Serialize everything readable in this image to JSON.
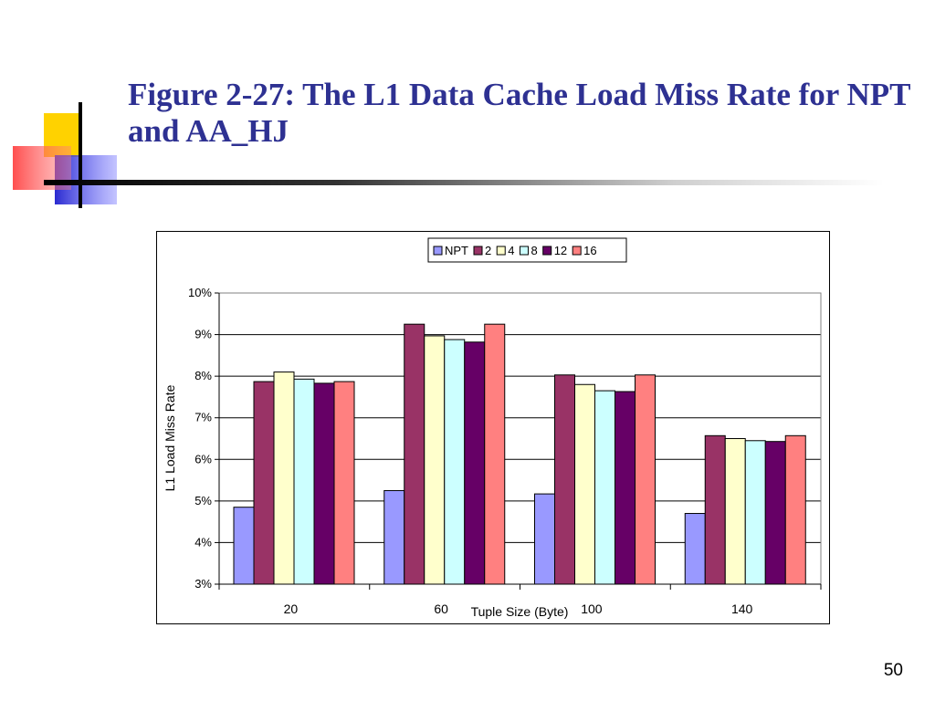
{
  "slide": {
    "title": "Figure 2-27: The L1 Data Cache Load Miss Rate for NPT and AA_HJ",
    "page_number": "50"
  },
  "colors": {
    "title": "#2e3192",
    "NPT": "#9999ff",
    "2": "#993366",
    "4": "#ffffcc",
    "8": "#ccffff",
    "12": "#660066",
    "16": "#ff8080"
  },
  "chart_data": {
    "type": "bar",
    "xlabel": "Tuple Size (Byte)",
    "ylabel": "L1 Load Miss Rate",
    "categories": [
      "20",
      "60",
      "100",
      "140"
    ],
    "ylim": [
      3,
      10
    ],
    "yticks": [
      "3%",
      "4%",
      "5%",
      "6%",
      "7%",
      "8%",
      "9%",
      "10%"
    ],
    "grid": true,
    "legend_position": "top",
    "series": [
      {
        "name": "NPT",
        "values": [
          4.85,
          5.25,
          5.17,
          4.7
        ]
      },
      {
        "name": "2",
        "values": [
          7.87,
          9.25,
          8.03,
          6.57
        ]
      },
      {
        "name": "4",
        "values": [
          8.1,
          8.97,
          7.8,
          6.5
        ]
      },
      {
        "name": "8",
        "values": [
          7.93,
          8.88,
          7.65,
          6.45
        ]
      },
      {
        "name": "12",
        "values": [
          7.83,
          8.82,
          7.63,
          6.43
        ]
      },
      {
        "name": "16",
        "values": [
          7.87,
          9.25,
          8.03,
          6.57
        ]
      }
    ]
  }
}
